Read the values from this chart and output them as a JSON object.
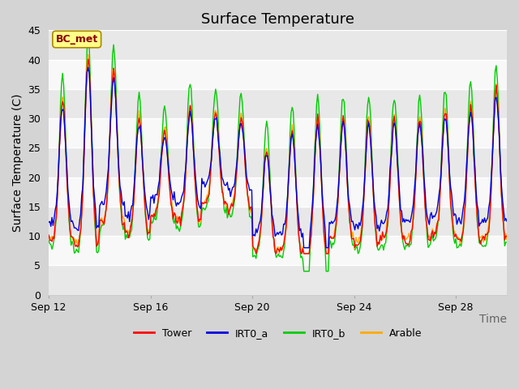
{
  "title": "Surface Temperature",
  "ylabel": "Surface Temperature (C)",
  "xlabel": "Time",
  "annotation": "BC_met",
  "ylim": [
    0,
    45
  ],
  "yticks": [
    0,
    5,
    10,
    15,
    20,
    25,
    30,
    35,
    40,
    45
  ],
  "xtick_labels": [
    "Sep 12",
    "Sep 16",
    "Sep 20",
    "Sep 24",
    "Sep 28"
  ],
  "xtick_positions": [
    0,
    4,
    8,
    12,
    16
  ],
  "n_days": 18,
  "series_colors": {
    "Tower": "#ff0000",
    "IRT0_a": "#0000dd",
    "IRT0_b": "#00cc00",
    "Arable": "#ffaa00"
  },
  "fig_bg": "#d4d4d4",
  "plot_bg": "#ffffff",
  "band_colors": [
    "#e8e8e8",
    "#f8f8f8"
  ],
  "grid_line_color": "#ffffff",
  "title_fontsize": 13,
  "axis_label_fontsize": 10,
  "tick_fontsize": 9,
  "linewidth": 1.0
}
